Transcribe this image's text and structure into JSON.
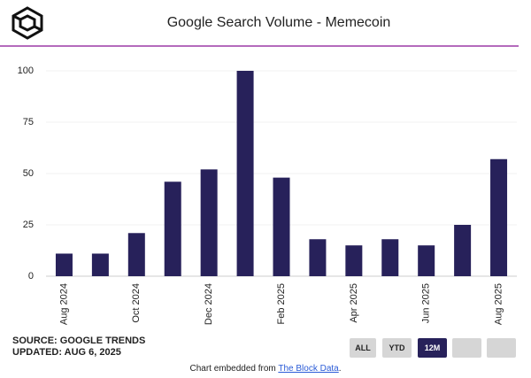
{
  "chart_data": {
    "type": "bar",
    "title": "Google Search Volume - Memecoin",
    "categories": [
      "Aug 2024",
      null,
      "Oct 2024",
      null,
      "Dec 2024",
      null,
      "Feb 2025",
      null,
      "Apr 2025",
      null,
      "Jun 2025",
      null,
      "Aug 2025"
    ],
    "values": [
      11,
      11,
      21,
      46,
      52,
      100,
      48,
      18,
      15,
      18,
      15,
      25,
      57
    ],
    "color": "#27215a",
    "ylim": [
      0,
      100
    ],
    "yticks": [
      0,
      25,
      50,
      75,
      100
    ],
    "grid": true
  },
  "source": "SOURCE: GOOGLE TRENDS",
  "updated": "UPDATED: AUG 6, 2025",
  "buttons": [
    "ALL",
    "YTD",
    "12M"
  ],
  "footer": {
    "prefix": "Chart embedded from",
    "link": "The Block Data",
    "suffix": "."
  }
}
